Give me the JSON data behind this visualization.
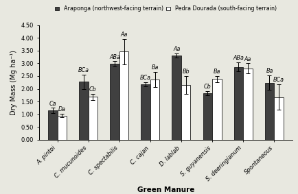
{
  "categories": [
    "A. pintoi",
    "C. mucunoides",
    "C. spectabilis",
    "C. cajan",
    "D. lablab",
    "S. guyanensis",
    "S. deeringianum",
    "Spontaneous"
  ],
  "araponga_values": [
    1.15,
    2.28,
    2.98,
    2.17,
    3.32,
    1.83,
    2.86,
    2.24
  ],
  "pedra_values": [
    0.95,
    1.68,
    3.46,
    2.37,
    2.15,
    2.38,
    2.8,
    1.67
  ],
  "araponga_errors": [
    0.1,
    0.28,
    0.1,
    0.08,
    0.08,
    0.08,
    0.18,
    0.28
  ],
  "pedra_errors": [
    0.08,
    0.12,
    0.5,
    0.3,
    0.35,
    0.12,
    0.2,
    0.5
  ],
  "araponga_labels": [
    "Ca",
    "BCa",
    "ABa",
    "BCa",
    "Aa",
    "Cb",
    "ABa",
    "Ba"
  ],
  "pedra_labels": [
    "Da",
    "Cb",
    "Aa",
    "Ba",
    "Bb",
    "Ba",
    "Aa",
    "BCa"
  ],
  "araponga_color": "#404040",
  "pedra_color": "#ffffff",
  "bar_edge_color": "#1a1a1a",
  "bar_width": 0.3,
  "ylim": [
    0.0,
    4.5
  ],
  "yticks": [
    0.0,
    0.5,
    1.0,
    1.5,
    2.0,
    2.5,
    3.0,
    3.5,
    4.0,
    4.5
  ],
  "ylabel": "Dry Mass (Mg ha⁻¹)",
  "xlabel": "Green Manure",
  "legend_araponga": "Araponga (northwest-facing terrain)",
  "legend_pedra": "Pedra Dourada (south-facing terrain)",
  "tick_fontsize": 6.0,
  "legend_fontsize": 5.8,
  "annotation_fontsize": 5.8,
  "xlabel_fontsize": 7.5,
  "ylabel_fontsize": 7.0,
  "capsize": 2,
  "bg_color": "#e8e8e0"
}
